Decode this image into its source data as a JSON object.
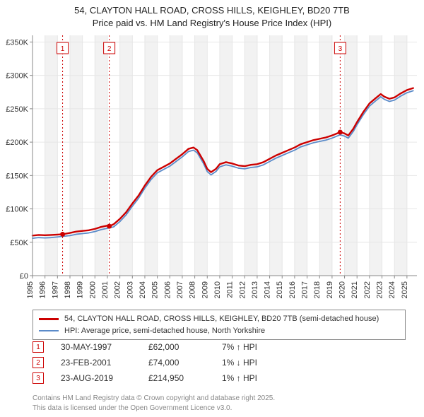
{
  "title_line1": "54, CLAYTON HALL ROAD, CROSS HILLS, KEIGHLEY, BD20 7TB",
  "title_line2": "Price paid vs. HM Land Registry's House Price Index (HPI)",
  "chart": {
    "type": "line",
    "background_color": "#ffffff",
    "grid_color": "#e6e6e6",
    "axis_color": "#888888",
    "shade_color": "#f2f2f2",
    "font_size_axis": 11,
    "x_years": [
      1995,
      1996,
      1997,
      1998,
      1999,
      2000,
      2001,
      2002,
      2003,
      2004,
      2005,
      2006,
      2007,
      2008,
      2009,
      2010,
      2011,
      2012,
      2013,
      2014,
      2015,
      2016,
      2017,
      2018,
      2019,
      2020,
      2021,
      2022,
      2023,
      2024,
      2025
    ],
    "y_ticks": [
      0,
      50000,
      100000,
      150000,
      200000,
      250000,
      300000,
      350000
    ],
    "y_labels": [
      "£0",
      "£50K",
      "£100K",
      "£150K",
      "£200K",
      "£250K",
      "£300K",
      "£350K"
    ],
    "ylim": [
      0,
      360000
    ],
    "xlim": [
      1995,
      2025.8
    ],
    "series": [
      {
        "name": "price_paid",
        "color": "#cc0000",
        "width": 2.4,
        "points": [
          [
            1995.0,
            60000
          ],
          [
            1995.5,
            61000
          ],
          [
            1996.0,
            60500
          ],
          [
            1996.5,
            61000
          ],
          [
            1997.0,
            61500
          ],
          [
            1997.41,
            62000
          ],
          [
            1998.0,
            64000
          ],
          [
            1998.5,
            66000
          ],
          [
            1999.0,
            67000
          ],
          [
            1999.5,
            68000
          ],
          [
            2000.0,
            70000
          ],
          [
            2000.5,
            73000
          ],
          [
            2001.0,
            75000
          ],
          [
            2001.15,
            74000
          ],
          [
            2001.5,
            77000
          ],
          [
            2002.0,
            85000
          ],
          [
            2002.5,
            95000
          ],
          [
            2003.0,
            108000
          ],
          [
            2003.5,
            120000
          ],
          [
            2004.0,
            135000
          ],
          [
            2004.5,
            148000
          ],
          [
            2005.0,
            158000
          ],
          [
            2005.5,
            163000
          ],
          [
            2006.0,
            168000
          ],
          [
            2006.5,
            175000
          ],
          [
            2007.0,
            182000
          ],
          [
            2007.5,
            190000
          ],
          [
            2007.9,
            192000
          ],
          [
            2008.2,
            188000
          ],
          [
            2008.7,
            172000
          ],
          [
            2009.0,
            160000
          ],
          [
            2009.3,
            155000
          ],
          [
            2009.7,
            160000
          ],
          [
            2010.0,
            167000
          ],
          [
            2010.5,
            170000
          ],
          [
            2011.0,
            168000
          ],
          [
            2011.5,
            165000
          ],
          [
            2012.0,
            164000
          ],
          [
            2012.5,
            166000
          ],
          [
            2013.0,
            167000
          ],
          [
            2013.5,
            170000
          ],
          [
            2014.0,
            175000
          ],
          [
            2014.5,
            180000
          ],
          [
            2015.0,
            184000
          ],
          [
            2015.5,
            188000
          ],
          [
            2016.0,
            192000
          ],
          [
            2016.5,
            197000
          ],
          [
            2017.0,
            200000
          ],
          [
            2017.5,
            203000
          ],
          [
            2018.0,
            205000
          ],
          [
            2018.5,
            207000
          ],
          [
            2019.0,
            210000
          ],
          [
            2019.65,
            214950
          ],
          [
            2020.0,
            213000
          ],
          [
            2020.3,
            210000
          ],
          [
            2020.7,
            220000
          ],
          [
            2021.0,
            230000
          ],
          [
            2021.5,
            245000
          ],
          [
            2022.0,
            258000
          ],
          [
            2022.5,
            266000
          ],
          [
            2022.9,
            272000
          ],
          [
            2023.2,
            268000
          ],
          [
            2023.6,
            265000
          ],
          [
            2024.0,
            267000
          ],
          [
            2024.5,
            273000
          ],
          [
            2025.0,
            278000
          ],
          [
            2025.5,
            281000
          ]
        ]
      },
      {
        "name": "hpi",
        "color": "#5b8bc9",
        "width": 1.8,
        "points": [
          [
            1995.0,
            56000
          ],
          [
            1995.5,
            57000
          ],
          [
            1996.0,
            56500
          ],
          [
            1996.5,
            57000
          ],
          [
            1997.0,
            58000
          ],
          [
            1997.5,
            59000
          ],
          [
            1998.0,
            60000
          ],
          [
            1998.5,
            62000
          ],
          [
            1999.0,
            63000
          ],
          [
            1999.5,
            64000
          ],
          [
            2000.0,
            66000
          ],
          [
            2000.5,
            69000
          ],
          [
            2001.0,
            71000
          ],
          [
            2001.5,
            73000
          ],
          [
            2002.0,
            81000
          ],
          [
            2002.5,
            91000
          ],
          [
            2003.0,
            104000
          ],
          [
            2003.5,
            116000
          ],
          [
            2004.0,
            131000
          ],
          [
            2004.5,
            144000
          ],
          [
            2005.0,
            154000
          ],
          [
            2005.5,
            159000
          ],
          [
            2006.0,
            164000
          ],
          [
            2006.5,
            171000
          ],
          [
            2007.0,
            178000
          ],
          [
            2007.5,
            186000
          ],
          [
            2007.9,
            188000
          ],
          [
            2008.2,
            184000
          ],
          [
            2008.7,
            168000
          ],
          [
            2009.0,
            156000
          ],
          [
            2009.3,
            151000
          ],
          [
            2009.7,
            156000
          ],
          [
            2010.0,
            163000
          ],
          [
            2010.5,
            166000
          ],
          [
            2011.0,
            164000
          ],
          [
            2011.5,
            161000
          ],
          [
            2012.0,
            160000
          ],
          [
            2012.5,
            162000
          ],
          [
            2013.0,
            163000
          ],
          [
            2013.5,
            166000
          ],
          [
            2014.0,
            171000
          ],
          [
            2014.5,
            176000
          ],
          [
            2015.0,
            180000
          ],
          [
            2015.5,
            184000
          ],
          [
            2016.0,
            188000
          ],
          [
            2016.5,
            193000
          ],
          [
            2017.0,
            196000
          ],
          [
            2017.5,
            199000
          ],
          [
            2018.0,
            201000
          ],
          [
            2018.5,
            203000
          ],
          [
            2019.0,
            206000
          ],
          [
            2019.65,
            211000
          ],
          [
            2020.0,
            209000
          ],
          [
            2020.3,
            206000
          ],
          [
            2020.7,
            216000
          ],
          [
            2021.0,
            226000
          ],
          [
            2021.5,
            241000
          ],
          [
            2022.0,
            254000
          ],
          [
            2022.5,
            262000
          ],
          [
            2022.9,
            268000
          ],
          [
            2023.2,
            264000
          ],
          [
            2023.6,
            261000
          ],
          [
            2024.0,
            263000
          ],
          [
            2024.5,
            269000
          ],
          [
            2025.0,
            274000
          ],
          [
            2025.5,
            277000
          ]
        ]
      }
    ],
    "sale_markers": [
      {
        "n": "1",
        "x": 1997.41,
        "y": 62000
      },
      {
        "n": "2",
        "x": 2001.15,
        "y": 74000
      },
      {
        "n": "3",
        "x": 2019.65,
        "y": 214950
      }
    ],
    "marker_box_border": "#cc0000",
    "marker_line_color": "#cc0000",
    "marker_point_fill": "#cc0000"
  },
  "legend": {
    "series1_label": "54, CLAYTON HALL ROAD, CROSS HILLS, KEIGHLEY, BD20 7TB (semi-detached house)",
    "series1_color": "#cc0000",
    "series1_width": 3,
    "series2_label": "HPI: Average price, semi-detached house, North Yorkshire",
    "series2_color": "#5b8bc9",
    "series2_width": 2
  },
  "sales": [
    {
      "n": "1",
      "date": "30-MAY-1997",
      "price": "£62,000",
      "hpi": "7% ↑ HPI"
    },
    {
      "n": "2",
      "date": "23-FEB-2001",
      "price": "£74,000",
      "hpi": "1% ↓ HPI"
    },
    {
      "n": "3",
      "date": "23-AUG-2019",
      "price": "£214,950",
      "hpi": "1% ↑ HPI"
    }
  ],
  "attribution_line1": "Contains HM Land Registry data © Crown copyright and database right 2025.",
  "attribution_line2": "This data is licensed under the Open Government Licence v3.0."
}
